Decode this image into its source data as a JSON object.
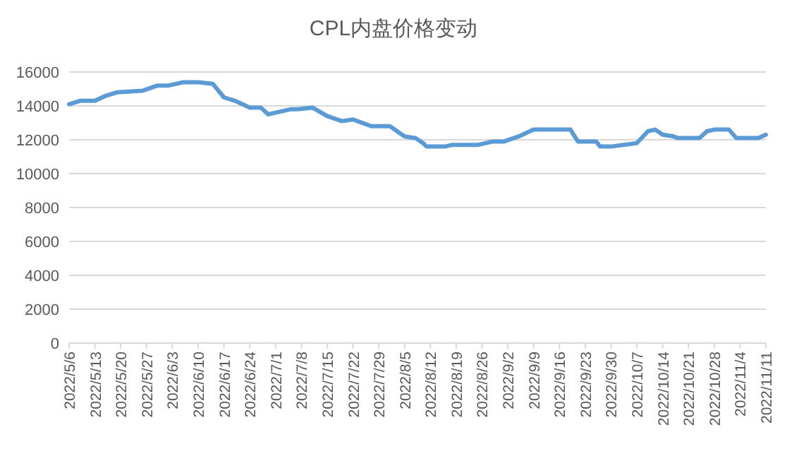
{
  "chart_data": {
    "type": "line",
    "title": "CPL内盘价格变动",
    "x": [
      "2022-05-06",
      "2022-05-09",
      "2022-05-13",
      "2022-05-16",
      "2022-05-19",
      "2022-05-26",
      "2022-05-30",
      "2022-06-02",
      "2022-06-06",
      "2022-06-10",
      "2022-06-14",
      "2022-06-17",
      "2022-06-20",
      "2022-06-24",
      "2022-06-27",
      "2022-06-29",
      "2022-07-01",
      "2022-07-05",
      "2022-07-07",
      "2022-07-11",
      "2022-07-15",
      "2022-07-19",
      "2022-07-22",
      "2022-07-27",
      "2022-08-01",
      "2022-08-05",
      "2022-08-08",
      "2022-08-10",
      "2022-08-11",
      "2022-08-16",
      "2022-08-18",
      "2022-08-25",
      "2022-08-29",
      "2022-09-01",
      "2022-09-05",
      "2022-09-09",
      "2022-09-19",
      "2022-09-21",
      "2022-09-26",
      "2022-09-27",
      "2022-09-30",
      "2022-10-07",
      "2022-10-10",
      "2022-10-12",
      "2022-10-14",
      "2022-10-17",
      "2022-10-18",
      "2022-10-24",
      "2022-10-26",
      "2022-10-28",
      "2022-11-01",
      "2022-11-03",
      "2022-11-09",
      "2022-11-11"
    ],
    "series": [
      {
        "color": "#5b9bd5",
        "values": [
          14100,
          14300,
          14300,
          14600,
          14800,
          14900,
          15200,
          15200,
          15400,
          15400,
          15300,
          14500,
          14300,
          13900,
          13900,
          13500,
          13600,
          13800,
          13800,
          13900,
          13400,
          13100,
          13200,
          12800,
          12800,
          12200,
          12100,
          11800,
          11600,
          11600,
          11700,
          11700,
          11900,
          11900,
          12200,
          12600,
          12600,
          11900,
          11900,
          11600,
          11600,
          11800,
          12500,
          12600,
          12300,
          12200,
          12100,
          12100,
          12500,
          12600,
          12600,
          12100,
          12100,
          12300
        ]
      }
    ],
    "xlim": [
      "2022-05-06",
      "2022-11-11"
    ],
    "xticks": [
      {
        "value": "2022-05-06",
        "label": "2022/5/6"
      },
      {
        "value": "2022-05-13",
        "label": "2022/5/13"
      },
      {
        "value": "2022-05-20",
        "label": "2022/5/20"
      },
      {
        "value": "2022-05-27",
        "label": "2022/5/27"
      },
      {
        "value": "2022-06-03",
        "label": "2022/6/3"
      },
      {
        "value": "2022-06-10",
        "label": "2022/6/10"
      },
      {
        "value": "2022-06-17",
        "label": "2022/6/17"
      },
      {
        "value": "2022-06-24",
        "label": "2022/6/24"
      },
      {
        "value": "2022-07-01",
        "label": "2022/7/1"
      },
      {
        "value": "2022-07-08",
        "label": "2022/7/8"
      },
      {
        "value": "2022-07-15",
        "label": "2022/7/15"
      },
      {
        "value": "2022-07-22",
        "label": "2022/7/22"
      },
      {
        "value": "2022-07-29",
        "label": "2022/7/29"
      },
      {
        "value": "2022-08-05",
        "label": "2022/8/5"
      },
      {
        "value": "2022-08-12",
        "label": "2022/8/12"
      },
      {
        "value": "2022-08-19",
        "label": "2022/8/19"
      },
      {
        "value": "2022-08-26",
        "label": "2022/8/26"
      },
      {
        "value": "2022-09-02",
        "label": "2022/9/2"
      },
      {
        "value": "2022-09-09",
        "label": "2022/9/9"
      },
      {
        "value": "2022-09-16",
        "label": "2022/9/16"
      },
      {
        "value": "2022-09-23",
        "label": "2022/9/23"
      },
      {
        "value": "2022-09-30",
        "label": "2022/9/30"
      },
      {
        "value": "2022-10-07",
        "label": "2022/10/7"
      },
      {
        "value": "2022-10-14",
        "label": "2022/10/14"
      },
      {
        "value": "2022-10-21",
        "label": "2022/10/21"
      },
      {
        "value": "2022-10-28",
        "label": "2022/10/28"
      },
      {
        "value": "2022-11-04",
        "label": "2022/11/4"
      },
      {
        "value": "2022-11-11",
        "label": "2022/11/11"
      }
    ],
    "ylim": [
      0,
      16000
    ],
    "yticks": [
      0,
      2000,
      4000,
      6000,
      8000,
      10000,
      12000,
      14000,
      16000
    ],
    "grid": "y",
    "marker": "none",
    "line_style": "solid"
  }
}
